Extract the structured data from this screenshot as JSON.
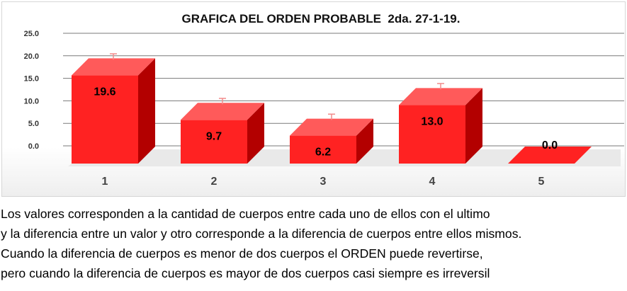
{
  "chart_data": {
    "type": "bar",
    "title": "GRAFICA DEL ORDEN PROBABLE  2da. 27-1-19.",
    "categories": [
      "1",
      "2",
      "3",
      "4",
      "5"
    ],
    "values": [
      19.6,
      9.7,
      6.2,
      13.0,
      0.0
    ],
    "value_labels": [
      "19.6",
      "9.7",
      "6.2",
      "13.0",
      "0.0"
    ],
    "error": 1.0,
    "y_ticks": [
      "25.0",
      "20.0",
      "15.0",
      "10.0",
      "5.0",
      "0.0"
    ],
    "ylim": [
      0,
      25
    ],
    "grid": true,
    "bar_color": "#ff2222",
    "bar_side_color": "#b30000",
    "bar_top_color": "#ff5a5a",
    "errorbar_color": "#f28b8b"
  },
  "caption": [
    "Los valores corresponden a la cantidad de cuerpos entre cada uno de ellos con el ultimo",
    "y la diferencia entre un valor y otro corresponde a la diferencia de cuerpos entre ellos mismos.",
    "Cuando la diferencia de cuerpos es menor de dos cuerpos el ORDEN puede revertirse,",
    "pero cuando la diferencia de cuerpos es mayor de dos cuerpos casi siempre es irreversil"
  ]
}
